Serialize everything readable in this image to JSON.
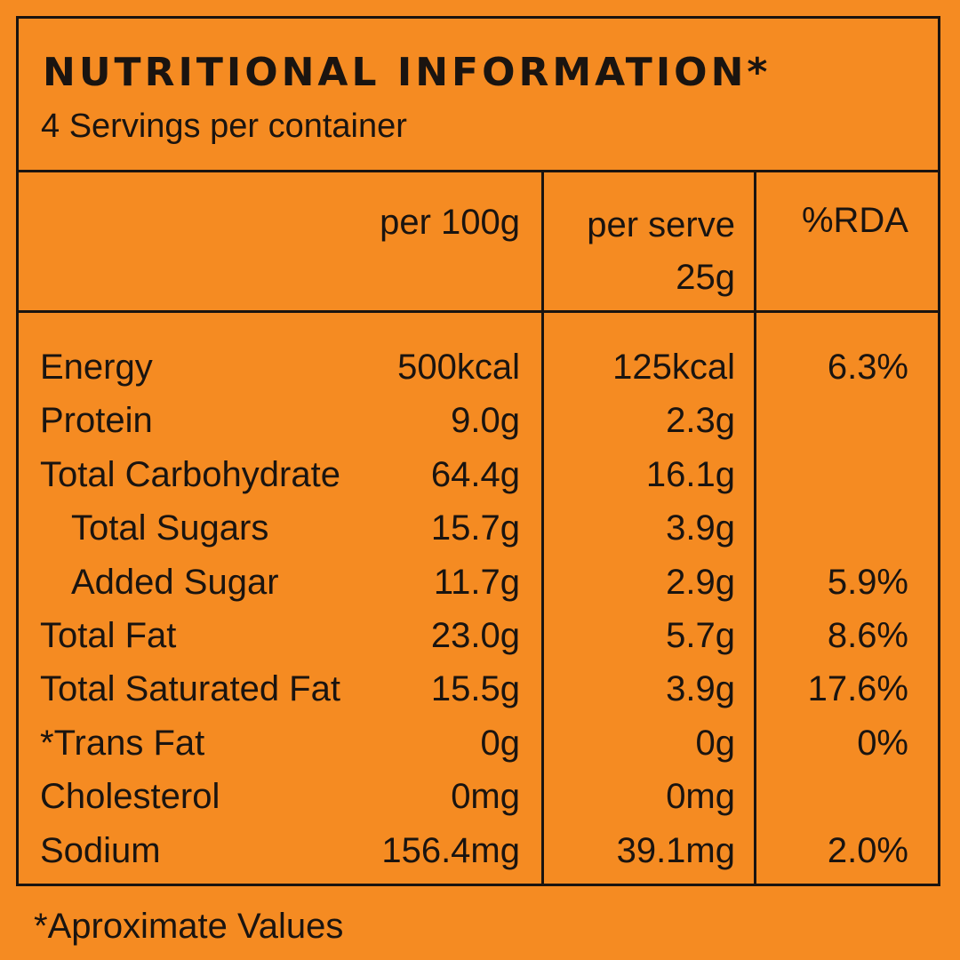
{
  "header": {
    "title": "NUTRITIONAL INFORMATION*",
    "subtitle": "4 Servings per container"
  },
  "table": {
    "columns": [
      [
        "per 100g"
      ],
      [
        "per serve",
        "25g"
      ],
      [
        "%RDA"
      ]
    ],
    "rows": [
      {
        "label": "Energy",
        "per_100g": "500kcal",
        "per_serve": "125kcal",
        "rda": "6.3%"
      },
      {
        "label": "Protein",
        "per_100g": "9.0g",
        "per_serve": "2.3g"
      },
      {
        "label": "Total Carbohydrate",
        "per_100g": "64.4g",
        "per_serve": "16.1g"
      },
      {
        "label": "Total Sugars",
        "per_100g": "15.7g",
        "per_serve": "3.9g",
        "indent": true
      },
      {
        "label": "Added Sugar",
        "per_100g": "11.7g",
        "per_serve": "2.9g",
        "rda": "5.9%",
        "indent": true
      },
      {
        "label": "Total Fat",
        "per_100g": "23.0g",
        "per_serve": "5.7g",
        "rda": "8.6%"
      },
      {
        "label": "Total Saturated Fat",
        "per_100g": "15.5g",
        "per_serve": "3.9g",
        "rda": "17.6%"
      },
      {
        "label": "*Trans Fat",
        "per_100g": "0g",
        "per_serve": "0g",
        "rda": "0%"
      },
      {
        "label": "Cholesterol",
        "per_100g": "0mg",
        "per_serve": "0mg"
      },
      {
        "label": "Sodium",
        "per_100g": "156.4mg",
        "per_serve": "39.1mg",
        "rda": "2.0%"
      }
    ]
  },
  "footer": {
    "note": "*Aproximate Values"
  }
}
